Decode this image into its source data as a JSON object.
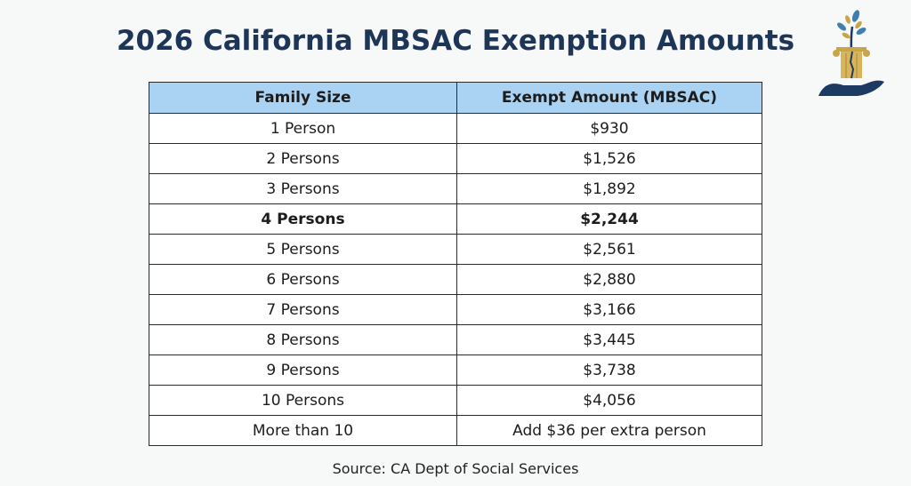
{
  "title": "2026 California MBSAC Exemption Amounts",
  "logo": {
    "icon": "pillar-tree-hand-logo",
    "colors": {
      "gold": "#c9a54a",
      "navy": "#1d3a63",
      "leaf": "#3f7fae"
    }
  },
  "table": {
    "headers": [
      "Family Size",
      "Exempt Amount (MBSAC)"
    ],
    "header_color": "#a9d2f3",
    "rows": [
      {
        "size": "1 Person",
        "amount": "$930"
      },
      {
        "size": "2 Persons",
        "amount": "$1,526"
      },
      {
        "size": "3 Persons",
        "amount": "$1,892"
      },
      {
        "size": "4 Persons",
        "amount": "$2,244",
        "bold": true
      },
      {
        "size": "5 Persons",
        "amount": "$2,561"
      },
      {
        "size": "6 Persons",
        "amount": "$2,880"
      },
      {
        "size": "7 Persons",
        "amount": "$3,166"
      },
      {
        "size": "8 Persons",
        "amount": "$3,445"
      },
      {
        "size": "9 Persons",
        "amount": "$3,738"
      },
      {
        "size": "10 Persons",
        "amount": "$4,056"
      },
      {
        "size": "More than 10",
        "amount": "Add $36 per extra person"
      }
    ]
  },
  "source": "Source: CA Dept of Social Services"
}
